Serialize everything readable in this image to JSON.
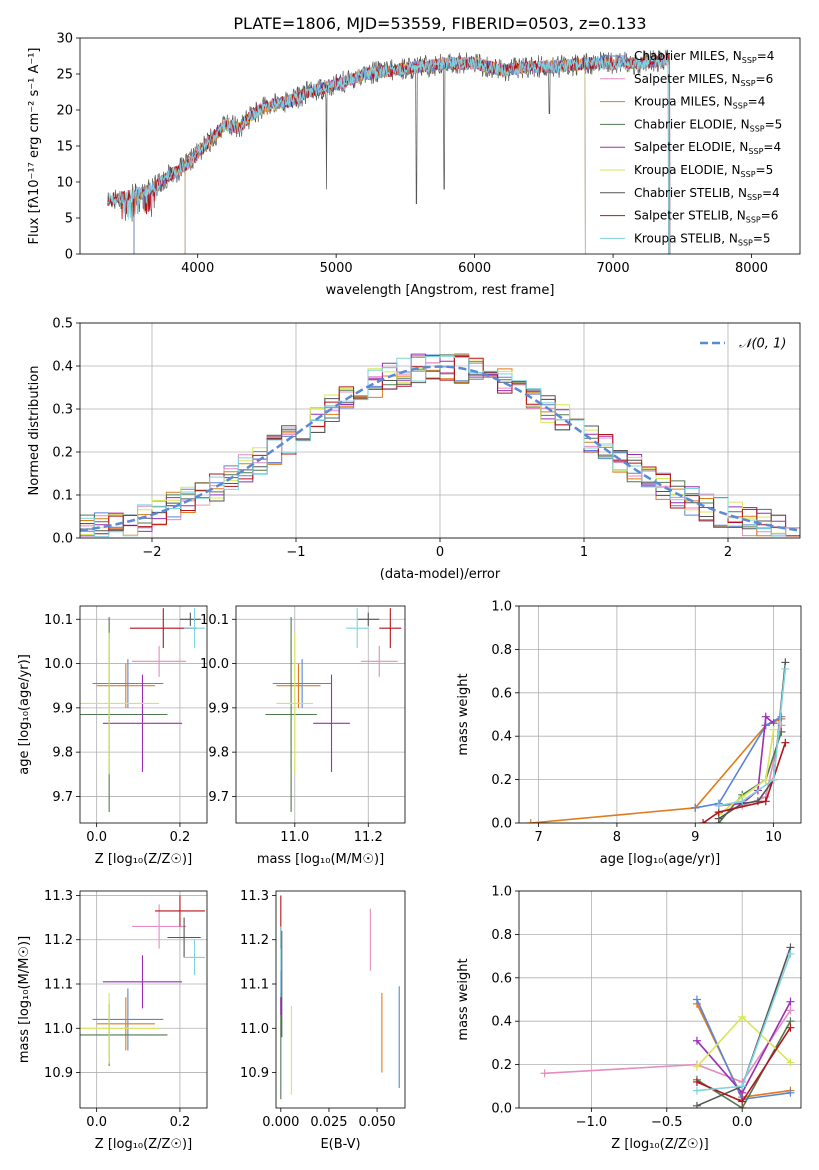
{
  "figure": {
    "title": "PLATE=1806, MJD=53559, FIBERID=0503, z=0.133"
  },
  "colors": {
    "Chabrier MILES": "#5b84d8",
    "Salpeter MILES": "#e58cc0",
    "Kroupa MILES": "#e07b1a",
    "Chabrier ELODIE": "#4f7a4f",
    "Salpeter ELODIE": "#9b2fb5",
    "Kroupa ELODIE": "#d8e65a",
    "Chabrier STELIB": "#555555",
    "Salpeter STELIB": "#b3141b",
    "Kroupa STELIB": "#7fd3df"
  },
  "chart_data": [
    {
      "id": "spectrum",
      "type": "line",
      "xlabel": "wavelength [Angstrom, rest frame]",
      "ylabel": "Flux [fλ10⁻¹⁷ erg cm⁻² s⁻¹ A⁻¹]",
      "xlim": [
        3150,
        8350
      ],
      "ylim": [
        0,
        30
      ],
      "xticks": [
        4000,
        5000,
        6000,
        7000,
        8000
      ],
      "yticks": [
        0,
        5,
        10,
        15,
        20,
        25,
        30
      ],
      "grid": false,
      "legend_position": "top-right",
      "legend": [
        {
          "label": "Chabrier MILES, N",
          "sub": "SSP",
          "suffix": "=4"
        },
        {
          "label": "Salpeter MILES, N",
          "sub": "SSP",
          "suffix": "=6"
        },
        {
          "label": "Kroupa MILES, N",
          "sub": "SSP",
          "suffix": "=4"
        },
        {
          "label": "Chabrier ELODIE, N",
          "sub": "SSP",
          "suffix": "=5"
        },
        {
          "label": "Salpeter ELODIE, N",
          "sub": "SSP",
          "suffix": "=4"
        },
        {
          "label": "Kroupa ELODIE, N",
          "sub": "SSP",
          "suffix": "=5"
        },
        {
          "label": "Chabrier STELIB, N",
          "sub": "SSP",
          "suffix": "=4"
        },
        {
          "label": "Salpeter STELIB, N",
          "sub": "SSP",
          "suffix": "=6"
        },
        {
          "label": "Kroupa STELIB, N",
          "sub": "SSP",
          "suffix": "=5"
        }
      ],
      "data_envelope": {
        "x": [
          3350,
          3500,
          3600,
          3700,
          3800,
          3900,
          4000,
          4100,
          4200,
          4300,
          4400,
          4500,
          4600,
          4700,
          4800,
          4900,
          5000,
          5200,
          5400,
          5600,
          5800,
          6000,
          6200,
          6400,
          6600,
          6800,
          7000,
          7200,
          7400
        ],
        "y": [
          7.5,
          8,
          8.5,
          9.5,
          11,
          12,
          14,
          16,
          18,
          17.5,
          19.5,
          20.5,
          21,
          21.5,
          22.5,
          23,
          23.5,
          25,
          25.5,
          26,
          26.5,
          26.5,
          25.5,
          26,
          26,
          26.5,
          26.5,
          26.5,
          27
        ]
      },
      "sharp_lines": [
        {
          "x": 4930,
          "y_min": 9
        },
        {
          "x": 5580,
          "y_min": 7
        },
        {
          "x": 5780,
          "y_min": 9
        },
        {
          "x": 6540,
          "y_min": 19.5
        }
      ],
      "model_ranges": {
        "Chabrier MILES": [
          3540,
          7410
        ],
        "Salpeter MILES": [
          3540,
          7410
        ],
        "Kroupa MILES": [
          3540,
          7410
        ],
        "Chabrier ELODIE": [
          3910,
          6800
        ],
        "Salpeter ELODIE": [
          3910,
          6800
        ],
        "Kroupa ELODIE": [
          3910,
          6800
        ],
        "Chabrier STELIB": [
          3350,
          7400
        ],
        "Salpeter STELIB": [
          3350,
          7400
        ],
        "Kroupa STELIB": [
          3350,
          7400
        ]
      }
    },
    {
      "id": "residuals",
      "type": "histogram",
      "xlabel": "(data-model)/error",
      "ylabel": "Normed distribution",
      "xlim": [
        -2.5,
        2.5
      ],
      "ylim": [
        0,
        0.5
      ],
      "xticks": [
        -2,
        -1,
        0,
        1,
        2
      ],
      "yticks": [
        0.0,
        0.1,
        0.2,
        0.3,
        0.4,
        0.5
      ],
      "grid": true,
      "legend_position": "top-right",
      "reference_label": "𝒩(0, 1)",
      "bin_width": 0.1
    },
    {
      "id": "age_vs_Z",
      "type": "errorbar",
      "xlabel": "Z [log₁₀(Z/Z☉)]",
      "ylabel": "age  [log₁₀(age/yr)]",
      "xlim": [
        -0.04,
        0.265
      ],
      "ylim": [
        9.64,
        10.13
      ],
      "xticks": [
        0.0,
        0.2
      ],
      "yticks": [
        9.7,
        9.8,
        9.9,
        10.0,
        10.1
      ],
      "grid": true,
      "points": [
        {
          "model": "Chabrier MILES",
          "x": 0.075,
          "xerr": 0.085,
          "y": 9.955,
          "yerr": 0.055
        },
        {
          "model": "Salpeter MILES",
          "x": 0.15,
          "xerr": 0.065,
          "y": 10.005,
          "yerr": 0.035
        },
        {
          "model": "Kroupa MILES",
          "x": 0.07,
          "xerr": 0.07,
          "y": 9.95,
          "yerr": 0.05
        },
        {
          "model": "Chabrier ELODIE",
          "x": 0.03,
          "xerr": 0.14,
          "y": 9.885,
          "yerr": 0.22
        },
        {
          "model": "Salpeter ELODIE",
          "x": 0.11,
          "xerr": 0.095,
          "y": 9.865,
          "yerr": 0.11
        },
        {
          "model": "Kroupa ELODIE",
          "x": 0.03,
          "xerr": 0.12,
          "y": 9.91,
          "yerr": 0.16
        },
        {
          "model": "Chabrier STELIB",
          "x": 0.225,
          "xerr": 0.025,
          "y": 10.1,
          "yerr": 0.015
        },
        {
          "model": "Salpeter STELIB",
          "x": 0.16,
          "xerr": 0.08,
          "y": 10.08,
          "yerr": 0.045
        },
        {
          "model": "Kroupa STELIB",
          "x": 0.235,
          "xerr": 0.025,
          "y": 10.08,
          "yerr": 0.045
        }
      ]
    },
    {
      "id": "age_vs_mass",
      "type": "errorbar",
      "xlabel": "mass [log₁₀(M/M☉)]",
      "ylabel": "",
      "xlim": [
        10.84,
        11.3
      ],
      "ylim": [
        9.64,
        10.13
      ],
      "xticks": [
        11.0,
        11.2
      ],
      "yticks": [
        9.7,
        9.8,
        9.9,
        10.0,
        10.1
      ],
      "grid": true,
      "points": [
        {
          "model": "Chabrier MILES",
          "x": 11.02,
          "xerr": 0.08,
          "y": 9.955,
          "yerr": 0.055
        },
        {
          "model": "Salpeter MILES",
          "x": 11.23,
          "xerr": 0.05,
          "y": 10.005,
          "yerr": 0.035
        },
        {
          "model": "Kroupa MILES",
          "x": 11.01,
          "xerr": 0.06,
          "y": 9.95,
          "yerr": 0.05
        },
        {
          "model": "Chabrier ELODIE",
          "x": 10.99,
          "xerr": 0.07,
          "y": 9.885,
          "yerr": 0.22
        },
        {
          "model": "Salpeter ELODIE",
          "x": 11.1,
          "xerr": 0.05,
          "y": 9.865,
          "yerr": 0.11
        },
        {
          "model": "Kroupa ELODIE",
          "x": 11.0,
          "xerr": 0.05,
          "y": 9.91,
          "yerr": 0.16
        },
        {
          "model": "Chabrier STELIB",
          "x": 11.2,
          "xerr": 0.03,
          "y": 10.1,
          "yerr": 0.015
        },
        {
          "model": "Salpeter STELIB",
          "x": 11.26,
          "xerr": 0.03,
          "y": 10.08,
          "yerr": 0.045
        },
        {
          "model": "Kroupa STELIB",
          "x": 11.17,
          "xerr": 0.03,
          "y": 10.08,
          "yerr": 0.045
        }
      ]
    },
    {
      "id": "mass_weight_vs_age",
      "type": "line",
      "xlabel": "age  [log₁₀(age/yr)]",
      "ylabel": "mass weight",
      "xlim": [
        6.75,
        10.35
      ],
      "ylim": [
        0,
        1
      ],
      "xticks": [
        7,
        8,
        9,
        10
      ],
      "yticks": [
        0.0,
        0.2,
        0.4,
        0.6,
        0.8,
        1.0
      ],
      "grid": true,
      "series": [
        {
          "model": "Kroupa MILES",
          "x": [
            6.9,
            9.0,
            9.9,
            10.1
          ],
          "y": [
            0.0,
            0.07,
            0.45,
            0.48
          ]
        },
        {
          "model": "Salpeter MILES",
          "x": [
            9.3,
            9.6,
            9.9,
            10.1
          ],
          "y": [
            0.05,
            0.08,
            0.12,
            0.45
          ]
        },
        {
          "model": "Chabrier MILES",
          "x": [
            9.0,
            9.3,
            9.9,
            10.1
          ],
          "y": [
            0.07,
            0.09,
            0.45,
            0.49
          ]
        },
        {
          "model": "Chabrier ELODIE",
          "x": [
            9.3,
            9.6,
            9.9,
            10.1
          ],
          "y": [
            0.0,
            0.13,
            0.2,
            0.42
          ]
        },
        {
          "model": "Salpeter ELODIE",
          "x": [
            9.3,
            9.6,
            9.8,
            9.9,
            10.0
          ],
          "y": [
            0.08,
            0.09,
            0.15,
            0.49,
            0.46
          ]
        },
        {
          "model": "Kroupa ELODIE",
          "x": [
            9.3,
            9.6,
            9.9,
            10.0
          ],
          "y": [
            0.04,
            0.12,
            0.2,
            0.43
          ]
        },
        {
          "model": "Chabrier STELIB",
          "x": [
            9.3,
            9.6,
            9.8,
            10.0,
            10.15
          ],
          "y": [
            0.02,
            0.09,
            0.1,
            0.2,
            0.74
          ]
        },
        {
          "model": "Salpeter STELIB",
          "x": [
            9.1,
            9.3,
            9.9,
            10.15
          ],
          "y": [
            0.0,
            0.05,
            0.1,
            0.37
          ]
        },
        {
          "model": "Kroupa STELIB",
          "x": [
            9.3,
            9.6,
            10.0,
            10.15
          ],
          "y": [
            0.08,
            0.1,
            0.2,
            0.71
          ]
        }
      ]
    },
    {
      "id": "mass_vs_Z",
      "type": "errorbar",
      "xlabel": "Z [log₁₀(Z/Z☉)]",
      "ylabel": "mass [log₁₀(M/M☉)]",
      "xlim": [
        -0.04,
        0.265
      ],
      "ylim": [
        10.82,
        11.31
      ],
      "xticks": [
        0.0,
        0.2
      ],
      "yticks": [
        10.9,
        11.0,
        11.1,
        11.2,
        11.3
      ],
      "grid": true,
      "points": [
        {
          "model": "Chabrier MILES",
          "x": 0.075,
          "xerr": 0.085,
          "y": 11.02,
          "yerr": 0.07
        },
        {
          "model": "Salpeter MILES",
          "x": 0.15,
          "xerr": 0.065,
          "y": 11.23,
          "yerr": 0.05
        },
        {
          "model": "Kroupa MILES",
          "x": 0.07,
          "xerr": 0.07,
          "y": 11.01,
          "yerr": 0.06
        },
        {
          "model": "Chabrier ELODIE",
          "x": 0.03,
          "xerr": 0.14,
          "y": 10.985,
          "yerr": 0.07
        },
        {
          "model": "Salpeter ELODIE",
          "x": 0.11,
          "xerr": 0.095,
          "y": 11.105,
          "yerr": 0.06
        },
        {
          "model": "Kroupa ELODIE",
          "x": 0.03,
          "xerr": 0.12,
          "y": 11.0,
          "yerr": 0.08
        },
        {
          "model": "Chabrier STELIB",
          "x": 0.21,
          "xerr": 0.04,
          "y": 11.205,
          "yerr": 0.045
        },
        {
          "model": "Salpeter STELIB",
          "x": 0.2,
          "xerr": 0.06,
          "y": 11.265,
          "yerr": 0.035
        },
        {
          "model": "Kroupa STELIB",
          "x": 0.235,
          "xerr": 0.025,
          "y": 11.16,
          "yerr": 0.04
        }
      ]
    },
    {
      "id": "mass_vs_ebv",
      "type": "errorbar",
      "xlabel": "E(B-V)",
      "ylabel": "",
      "xlim": [
        -0.0025,
        0.0645
      ],
      "ylim": [
        10.82,
        11.31
      ],
      "xticks": [
        0.0,
        0.025,
        0.05
      ],
      "yticks": [
        10.9,
        11.0,
        11.1,
        11.2,
        11.3
      ],
      "grid": false,
      "points": [
        {
          "model": "Chabrier MILES",
          "x": 0.0615,
          "xerr": 0,
          "y": 10.98,
          "yerr": 0.115
        },
        {
          "model": "Salpeter MILES",
          "x": 0.0465,
          "xerr": 0,
          "y": 11.2,
          "yerr": 0.07
        },
        {
          "model": "Kroupa MILES",
          "x": 0.0525,
          "xerr": 0,
          "y": 10.99,
          "yerr": 0.09
        },
        {
          "model": "Chabrier ELODIE",
          "x": 0.0,
          "xerr": 0,
          "y": 10.96,
          "yerr": 0.12
        },
        {
          "model": "Salpeter ELODIE",
          "x": 0.0,
          "xerr": 0,
          "y": 11.08,
          "yerr": 0.05
        },
        {
          "model": "Kroupa ELODIE",
          "x": 0.0055,
          "xerr": 0,
          "y": 10.95,
          "yerr": 0.1
        },
        {
          "model": "Chabrier STELIB",
          "x": 0.0005,
          "xerr": 0,
          "y": 11.1,
          "yerr": 0.12
        },
        {
          "model": "Salpeter STELIB",
          "x": 0.0,
          "xerr": 0,
          "y": 11.24,
          "yerr": 0.06
        },
        {
          "model": "Kroupa STELIB",
          "x": 0.0,
          "xerr": 0,
          "y": 11.15,
          "yerr": 0.08
        }
      ]
    },
    {
      "id": "mass_weight_vs_Z",
      "type": "line",
      "xlabel": "Z [log₁₀(Z/Z☉)]",
      "ylabel": "mass weight",
      "xlim": [
        -1.48,
        0.39
      ],
      "ylim": [
        0,
        1
      ],
      "xticks": [
        -1.0,
        -0.5,
        0.0
      ],
      "yticks": [
        0.0,
        0.2,
        0.4,
        0.6,
        0.8,
        1.0
      ],
      "grid": true,
      "series": [
        {
          "model": "Salpeter MILES",
          "x": [
            -1.31,
            -0.3,
            0.0,
            0.32
          ],
          "y": [
            0.16,
            0.2,
            0.12,
            0.45
          ]
        },
        {
          "model": "Kroupa MILES",
          "x": [
            -0.3,
            0.0,
            0.32
          ],
          "y": [
            0.48,
            0.05,
            0.08
          ]
        },
        {
          "model": "Chabrier MILES",
          "x": [
            -0.3,
            0.0,
            0.32
          ],
          "y": [
            0.5,
            0.04,
            0.07
          ]
        },
        {
          "model": "Chabrier ELODIE",
          "x": [
            -0.3,
            0.0,
            0.32
          ],
          "y": [
            0.13,
            0.0,
            0.4
          ]
        },
        {
          "model": "Salpeter ELODIE",
          "x": [
            -0.3,
            0.0,
            0.32
          ],
          "y": [
            0.31,
            0.07,
            0.49
          ]
        },
        {
          "model": "Kroupa ELODIE",
          "x": [
            -0.3,
            0.0,
            0.32
          ],
          "y": [
            0.19,
            0.42,
            0.21
          ]
        },
        {
          "model": "Chabrier STELIB",
          "x": [
            -0.3,
            0.0,
            0.32
          ],
          "y": [
            0.01,
            0.1,
            0.74
          ]
        },
        {
          "model": "Salpeter STELIB",
          "x": [
            -0.3,
            0.0,
            0.32
          ],
          "y": [
            0.12,
            0.03,
            0.37
          ]
        },
        {
          "model": "Kroupa STELIB",
          "x": [
            -0.3,
            0.0,
            0.32
          ],
          "y": [
            0.08,
            0.1,
            0.71
          ]
        }
      ]
    }
  ]
}
